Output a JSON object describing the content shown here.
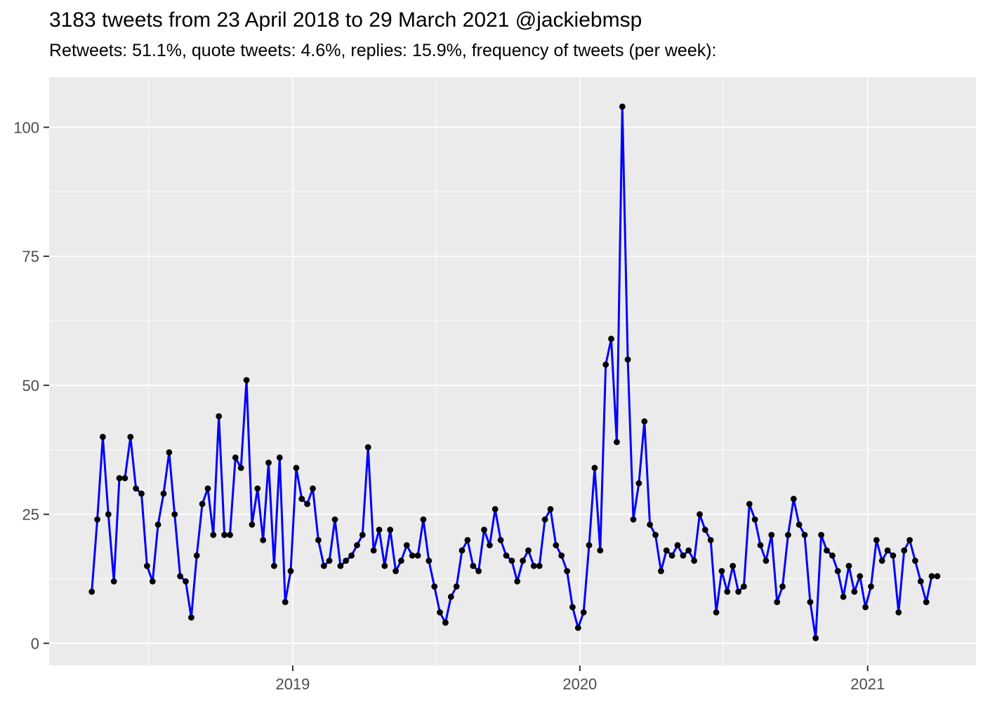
{
  "header": {
    "title": "3183 tweets from 23 April 2018 to 29 March 2021 @jackiebmsp",
    "subtitle": "Retweets: 51.1%, quote tweets: 4.6%, replies: 15.9%, frequency of tweets (per week):"
  },
  "colors": {
    "line": "#0000FF",
    "point": "#000000",
    "panel_background": "#EBEBEB",
    "gridline": "#FFFFFF",
    "tick_mark": "#333333",
    "tick_label": "#4D4D4D",
    "title_text": "#000000"
  },
  "chart_data": {
    "type": "line",
    "title": "3183 tweets from 23 April 2018 to 29 March 2021 @jackiebmsp",
    "subtitle": "Retweets: 51.1%, quote tweets: 4.6%, replies: 15.9%, frequency of tweets (per week):",
    "xlabel": "",
    "ylabel": "",
    "x_start_date": "2018-04-23",
    "x_end_date": "2021-03-29",
    "x_interval": "weekly",
    "grid": true,
    "legend": "none",
    "y_ticks": [
      0,
      25,
      50,
      75,
      100
    ],
    "y_minor_ticks": [
      12.5,
      37.5,
      62.5,
      87.5
    ],
    "x_tick_labels": [
      "2019",
      "2020",
      "2021"
    ],
    "x_tick_weeks": [
      36.37,
      88.32,
      140.4
    ],
    "x_minor_tick_weeks": [
      10.3,
      62.2,
      114.2
    ],
    "ylim": [
      -4.3,
      109.7
    ],
    "xlim_weeks": [
      -7.71,
      160.0
    ],
    "values": [
      10,
      24,
      40,
      25,
      12,
      32,
      32,
      40,
      30,
      29,
      15,
      12,
      23,
      29,
      37,
      25,
      13,
      12,
      5,
      17,
      27,
      30,
      21,
      44,
      21,
      21,
      36,
      34,
      51,
      23,
      30,
      20,
      35,
      15,
      36,
      8,
      14,
      34,
      28,
      27,
      30,
      20,
      15,
      16,
      24,
      15,
      16,
      17,
      19,
      21,
      38,
      18,
      22,
      15,
      22,
      14,
      16,
      19,
      17,
      17,
      24,
      16,
      11,
      6,
      4,
      9,
      11,
      18,
      20,
      15,
      14,
      22,
      19,
      26,
      20,
      17,
      16,
      12,
      16,
      18,
      15,
      15,
      24,
      26,
      19,
      17,
      14,
      7,
      3,
      6,
      19,
      34,
      18,
      54,
      59,
      39,
      104,
      55,
      24,
      31,
      43,
      23,
      21,
      14,
      18,
      17,
      19,
      17,
      18,
      16,
      25,
      22,
      20,
      6,
      14,
      10,
      15,
      10,
      11,
      27,
      24,
      19,
      16,
      21,
      8,
      11,
      21,
      28,
      23,
      21,
      8,
      1,
      21,
      18,
      17,
      14,
      9,
      15,
      10,
      13,
      7,
      11,
      20,
      16,
      18,
      17,
      6,
      18,
      20,
      16,
      12,
      8,
      13,
      13
    ]
  }
}
